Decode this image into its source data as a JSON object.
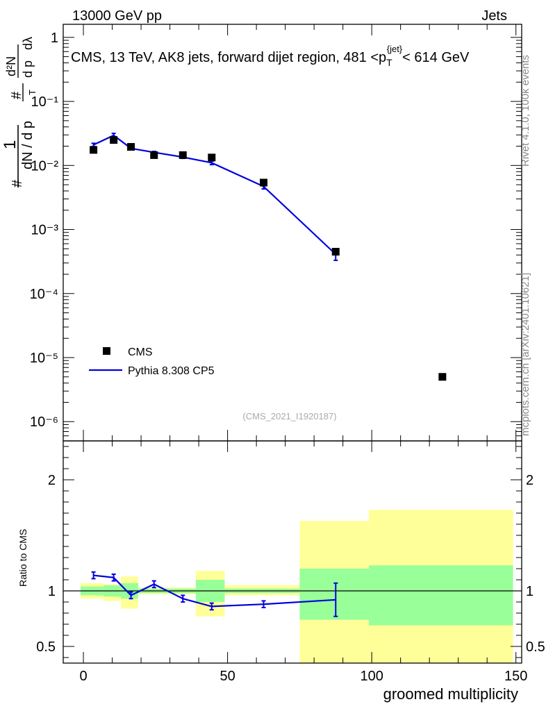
{
  "header": {
    "energy": "13000 GeV pp",
    "category": "Jets"
  },
  "title": {
    "prefix": "CMS, 13 TeV, AK8 jets, forward dijet region, 481 <p",
    "sub": "T",
    "sup": "{jet}",
    "suffix": "< 614 GeV"
  },
  "watermark": "(CMS_2021_I1920187)",
  "side_labels": {
    "rivet": "Rivet 4.1.0,  100k events",
    "mcplots": "mcplots.cern.ch [arXiv:2401.10621]"
  },
  "ylabel_main": {
    "one": "1",
    "hash": "#",
    "dN": "dN / d p",
    "T": "T",
    "d2N": "d²N",
    "dpT": "d p",
    "dl": "dλ"
  },
  "legend": {
    "data": "CMS",
    "mc": "Pythia 8.308 CP5"
  },
  "colors": {
    "mc": "#0000dd",
    "data": "#000000",
    "band_inner": "#99ff99",
    "band_outer": "#ffff99"
  },
  "chart_data": {
    "type": "line",
    "xlabel": "groomed multiplicity",
    "xlim": [
      -7,
      152
    ],
    "x_ticks": [
      "0",
      "50",
      "100",
      "150"
    ],
    "main": {
      "yscale": "log",
      "ylim": [
        5e-07,
        1.6
      ],
      "y_ticks": [
        "1",
        "10⁻¹",
        "10⁻²",
        "10⁻³",
        "10⁻⁴",
        "10⁻⁵",
        "10⁻⁶"
      ],
      "data_series": {
        "name": "CMS",
        "x": [
          3.5,
          10.5,
          16.5,
          24.5,
          34.5,
          44.5,
          62.5,
          87.5,
          124.5
        ],
        "y": [
          0.0175,
          0.025,
          0.0195,
          0.0145,
          0.0145,
          0.0133,
          0.0054,
          0.00045,
          5e-06
        ]
      },
      "mc_series": {
        "name": "Pythia 8.308 CP5",
        "x": [
          3.5,
          10.5,
          16.5,
          24.5,
          34.5,
          44.5,
          62.5,
          87.5
        ],
        "y": [
          0.021,
          0.0295,
          0.0185,
          0.016,
          0.0135,
          0.011,
          0.0047,
          0.00041
        ],
        "err": [
          0.0012,
          0.0022,
          0.0008,
          0.0006,
          0.0006,
          0.0007,
          0.0004,
          8e-05
        ]
      }
    },
    "ratio": {
      "ylabel": "Ratio to CMS",
      "ylim": [
        0.35,
        2.35
      ],
      "y_ticks": [
        "0.5",
        "1",
        "2"
      ],
      "mc_ratio": {
        "x": [
          3.5,
          10.5,
          16.5,
          24.5,
          34.5,
          44.5,
          62.5,
          87.5
        ],
        "y": [
          1.14,
          1.12,
          0.96,
          1.06,
          0.93,
          0.86,
          0.88,
          0.92
        ],
        "err": [
          0.03,
          0.03,
          0.03,
          0.03,
          0.03,
          0.03,
          0.03,
          0.15
        ]
      },
      "bands": [
        {
          "x0": -1,
          "x1": 7,
          "inner": [
            0.96,
            1.04
          ],
          "outer": [
            0.93,
            1.07
          ]
        },
        {
          "x0": 7,
          "x1": 13,
          "inner": [
            0.95,
            1.05
          ],
          "outer": [
            0.91,
            1.06
          ]
        },
        {
          "x0": 13,
          "x1": 19,
          "inner": [
            0.93,
            1.07
          ],
          "outer": [
            0.84,
            1.13
          ]
        },
        {
          "x0": 19,
          "x1": 39,
          "inner": [
            0.98,
            1.02
          ],
          "outer": [
            0.97,
            1.03
          ]
        },
        {
          "x0": 39,
          "x1": 49,
          "inner": [
            0.9,
            1.1
          ],
          "outer": [
            0.77,
            1.18
          ]
        },
        {
          "x0": 49,
          "x1": 75,
          "inner": [
            0.98,
            1.02
          ],
          "outer": [
            0.96,
            1.05
          ]
        },
        {
          "x0": 75,
          "x1": 99,
          "inner": [
            0.74,
            1.2
          ],
          "outer": [
            0.28,
            1.63
          ]
        },
        {
          "x0": 99,
          "x1": 149,
          "inner": [
            0.69,
            1.23
          ],
          "outer": [
            0.25,
            1.73
          ]
        }
      ]
    }
  }
}
